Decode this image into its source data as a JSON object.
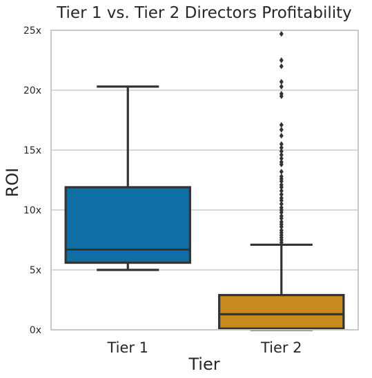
{
  "chart_data": {
    "type": "box",
    "title": "Tier 1 vs. Tier 2 Directors Profitability",
    "xlabel": "Tier",
    "ylabel": "ROI",
    "categories": [
      "Tier 1",
      "Tier 2"
    ],
    "ylim": [
      0,
      25
    ],
    "y_ticks": [
      0,
      5,
      10,
      15,
      20,
      25
    ],
    "y_tick_labels": [
      "0x",
      "5x",
      "10x",
      "15x",
      "20x",
      "25x"
    ],
    "grid": "horizontal",
    "boxes": [
      {
        "category": "Tier 1",
        "color": "#0f6fa5",
        "whisker_low": 5.0,
        "q1": 5.6,
        "median": 6.7,
        "q3": 11.9,
        "whisker_high": 20.3,
        "outliers": []
      },
      {
        "category": "Tier 2",
        "color": "#c8891f",
        "whisker_low": 0.0,
        "q1": 0.1,
        "median": 1.3,
        "q3": 2.9,
        "whisker_high": 7.1,
        "outliers": [
          24.7,
          22.5,
          22.0,
          20.7,
          20.3,
          19.7,
          19.5,
          17.1,
          16.7,
          16.2,
          15.5,
          15.2,
          14.9,
          14.6,
          14.3,
          14.0,
          13.8,
          13.2,
          12.8,
          12.6,
          12.4,
          12.1,
          11.9,
          11.6,
          11.3,
          11.0,
          10.8,
          10.5,
          10.2,
          10.0,
          9.8,
          9.5,
          9.3,
          9.0,
          8.8,
          8.6,
          8.3,
          8.1,
          7.9,
          7.7,
          7.5,
          7.3
        ]
      }
    ]
  },
  "colors": {
    "background": "#ffffff",
    "grid": "#cccccc",
    "frame": "#c0c0c0",
    "line": "#333333",
    "text": "#262626"
  }
}
